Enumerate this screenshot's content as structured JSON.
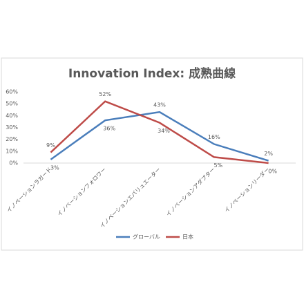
{
  "chart_data": {
    "type": "line",
    "title": "Innovation Index: 成熟曲線",
    "categories": [
      "イノベーションラガード",
      "イノベーションフォロワー",
      "イノベーションエバリュエーター",
      "イノベーションアダプター",
      "イノベーションリーダー"
    ],
    "series": [
      {
        "name": "グローバル",
        "color": "#4a7ebb",
        "values": [
          3,
          36,
          43,
          16,
          2
        ],
        "value_labels": [
          "3%",
          "36%",
          "43%",
          "16%",
          "2%"
        ]
      },
      {
        "name": "日本",
        "color": "#be4b48",
        "values": [
          9,
          52,
          34,
          5,
          0
        ],
        "value_labels": [
          "9%",
          "52%",
          "34%",
          "5%",
          "0%"
        ]
      }
    ],
    "ylim": [
      0,
      60
    ],
    "yticks": [
      {
        "value": 0,
        "label": "0%"
      },
      {
        "value": 10,
        "label": "10%"
      },
      {
        "value": 20,
        "label": "20%"
      },
      {
        "value": 30,
        "label": "30%"
      },
      {
        "value": 40,
        "label": "40%"
      },
      {
        "value": 50,
        "label": "50%"
      },
      {
        "value": 60,
        "label": "60%"
      }
    ],
    "grid": false,
    "legend": "bottom"
  }
}
